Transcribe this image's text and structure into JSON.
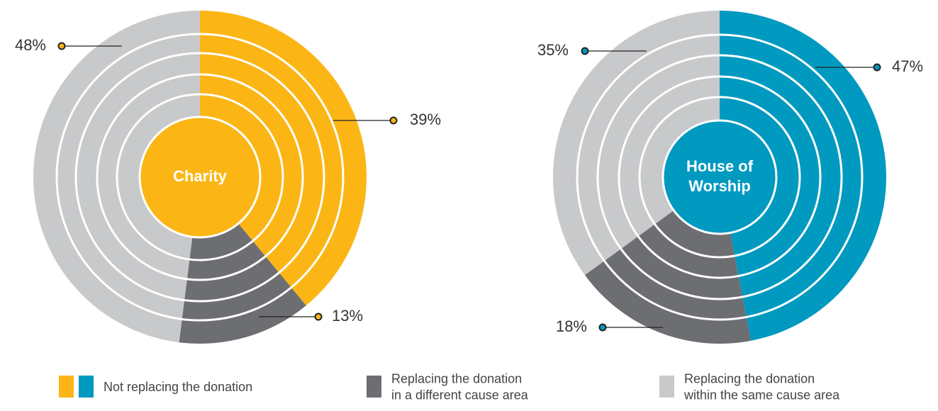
{
  "chart_data": [
    {
      "type": "pie",
      "center_label": [
        "Charity"
      ],
      "values": [
        39,
        13,
        48
      ],
      "value_labels": [
        "39%",
        "13%",
        "48%"
      ],
      "colors": [
        "#fbb616",
        "#6d6e71",
        "#c8c9cb"
      ]
    },
    {
      "type": "pie",
      "center_label": [
        "House of",
        "Worship"
      ],
      "values": [
        47,
        18,
        35
      ],
      "value_labels": [
        "47%",
        "18%",
        "35%"
      ],
      "colors": [
        "#0099c0",
        "#6d6e71",
        "#c8c9cb"
      ]
    }
  ],
  "legend": [
    {
      "label": [
        "Not replacing the donation"
      ],
      "colors": [
        "#fbb616",
        "#0099c0"
      ]
    },
    {
      "label": [
        "Replacing the donation",
        "in a different cause area"
      ],
      "colors": [
        "#6d6e71"
      ]
    },
    {
      "label": [
        "Replacing the donation",
        "within the same cause area"
      ],
      "colors": [
        "#c8c9cb"
      ]
    }
  ]
}
